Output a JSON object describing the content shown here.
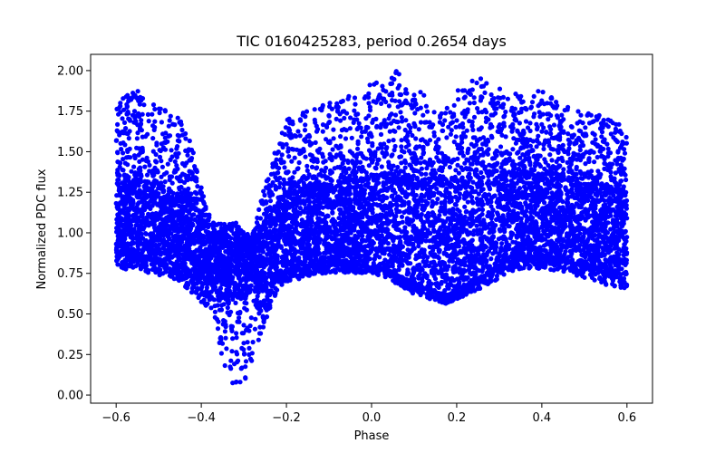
{
  "chart_data": {
    "type": "scatter",
    "title": "TIC 0160425283, period 0.2654 days",
    "xlabel": "Phase",
    "ylabel": "Normalized PDC flux",
    "xlim": [
      -0.66,
      0.66
    ],
    "ylim": [
      -0.05,
      2.1
    ],
    "xticks": [
      -0.6,
      -0.4,
      -0.2,
      0.0,
      0.2,
      0.4,
      0.6
    ],
    "xtick_labels": [
      "−0.6",
      "−0.4",
      "−0.2",
      "0.0",
      "0.2",
      "0.4",
      "0.6"
    ],
    "yticks": [
      0.0,
      0.25,
      0.5,
      0.75,
      1.0,
      1.25,
      1.5,
      1.75,
      2.0
    ],
    "ytick_labels": [
      "0.00",
      "0.25",
      "0.50",
      "0.75",
      "1.00",
      "1.25",
      "1.50",
      "1.75",
      "2.00"
    ],
    "grid": false,
    "marker_color": "#0000ff",
    "series": [
      {
        "x_range": [
          -0.6,
          0.6
        ],
        "envelope": {
          "phase": [
            -0.6,
            -0.55,
            -0.5,
            -0.45,
            -0.42,
            -0.38,
            -0.35,
            -0.32,
            -0.3,
            -0.28,
            -0.25,
            -0.22,
            -0.2,
            -0.1,
            0.0,
            0.05,
            0.1,
            0.15,
            0.18,
            0.2,
            0.25,
            0.3,
            0.35,
            0.4,
            0.45,
            0.5,
            0.55,
            0.6
          ],
          "upper": [
            1.86,
            1.88,
            1.78,
            1.7,
            1.55,
            1.1,
            1.05,
            1.07,
            1.0,
            1.0,
            1.3,
            1.58,
            1.7,
            1.8,
            1.92,
            2.02,
            1.9,
            1.8,
            1.8,
            1.9,
            1.96,
            1.9,
            1.85,
            1.88,
            1.8,
            1.75,
            1.72,
            1.66
          ],
          "dense_upper": [
            1.3,
            1.32,
            1.28,
            1.22,
            1.18,
            0.98,
            0.95,
            0.95,
            0.93,
            0.93,
            1.05,
            1.2,
            1.25,
            1.3,
            1.35,
            1.38,
            1.34,
            1.3,
            1.3,
            1.32,
            1.38,
            1.4,
            1.38,
            1.36,
            1.33,
            1.3,
            1.28,
            1.25
          ],
          "dense_lower": [
            0.88,
            0.86,
            0.84,
            0.8,
            0.76,
            0.7,
            0.62,
            0.58,
            0.6,
            0.63,
            0.66,
            0.72,
            0.76,
            0.82,
            0.8,
            0.76,
            0.68,
            0.64,
            0.62,
            0.64,
            0.72,
            0.8,
            0.86,
            0.86,
            0.84,
            0.8,
            0.76,
            0.75
          ],
          "lower": [
            0.78,
            0.77,
            0.74,
            0.7,
            0.62,
            0.5,
            0.18,
            0.02,
            0.08,
            0.2,
            0.45,
            0.66,
            0.7,
            0.75,
            0.75,
            0.7,
            0.62,
            0.58,
            0.56,
            0.58,
            0.65,
            0.72,
            0.78,
            0.78,
            0.76,
            0.72,
            0.68,
            0.65
          ]
        },
        "point_count": 9000
      }
    ]
  }
}
